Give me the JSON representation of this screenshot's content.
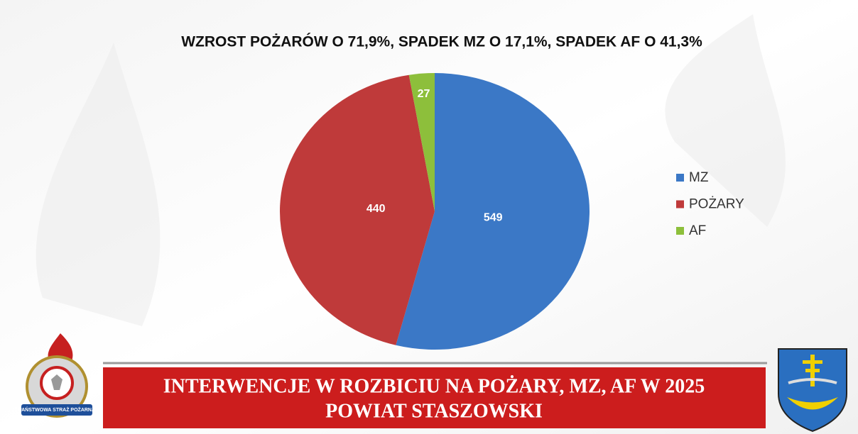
{
  "chart_data": {
    "type": "pie",
    "title": "WZROST POŻARÓW O 71,9%, SPADEK MZ O 17,1%, SPADEK AF O 41,3%",
    "categories": [
      "MZ",
      "POŻARY",
      "AF"
    ],
    "values": [
      549,
      440,
      27
    ],
    "colors": [
      "#3b78c6",
      "#bf3a3a",
      "#8dbf3b"
    ],
    "legend": "right"
  },
  "banner": {
    "lines": [
      "INTERWENCJE W ROZBICIU NA POŻARY, MZ, AF W 2025",
      "POWIAT STASZOWSKI"
    ]
  },
  "logo": {
    "text": "PAŃSTWOWA STRAŻ POŻARNA"
  }
}
